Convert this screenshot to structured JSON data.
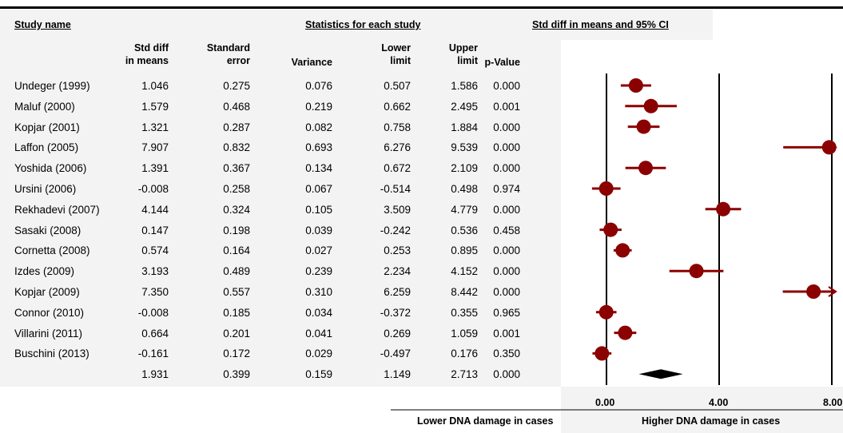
{
  "titles": {
    "study_name": "Study name",
    "statistics": "Statistics for each study",
    "forest": "Std diff in means and 95% CI"
  },
  "columns": [
    {
      "key": "smd",
      "label": "Std diff\nin means"
    },
    {
      "key": "se",
      "label": "Standard\nerror"
    },
    {
      "key": "var",
      "label": "Variance"
    },
    {
      "key": "lower",
      "label": "Lower\nlimit"
    },
    {
      "key": "upper",
      "label": "Upper\nlimit"
    },
    {
      "key": "p",
      "label": "p-Value"
    }
  ],
  "rows": [
    {
      "name": "Undeger (1999)",
      "smd": "1.046",
      "se": "0.275",
      "var": "0.076",
      "lower": "0.507",
      "upper": "1.586",
      "p": "0.000"
    },
    {
      "name": "Maluf (2000)",
      "smd": "1.579",
      "se": "0.468",
      "var": "0.219",
      "lower": "0.662",
      "upper": "2.495",
      "p": "0.001"
    },
    {
      "name": "Kopjar (2001)",
      "smd": "1.321",
      "se": "0.287",
      "var": "0.082",
      "lower": "0.758",
      "upper": "1.884",
      "p": "0.000"
    },
    {
      "name": "Laffon (2005)",
      "smd": "7.907",
      "se": "0.832",
      "var": "0.693",
      "lower": "6.276",
      "upper": "9.539",
      "p": "0.000"
    },
    {
      "name": "Yoshida (2006)",
      "smd": "1.391",
      "se": "0.367",
      "var": "0.134",
      "lower": "0.672",
      "upper": "2.109",
      "p": "0.000"
    },
    {
      "name": "Ursini (2006)",
      "smd": "-0.008",
      "se": "0.258",
      "var": "0.067",
      "lower": "-0.514",
      "upper": "0.498",
      "p": "0.974"
    },
    {
      "name": "Rekhadevi (2007)",
      "smd": "4.144",
      "se": "0.324",
      "var": "0.105",
      "lower": "3.509",
      "upper": "4.779",
      "p": "0.000"
    },
    {
      "name": "Sasaki (2008)",
      "smd": "0.147",
      "se": "0.198",
      "var": "0.039",
      "lower": "-0.242",
      "upper": "0.536",
      "p": "0.458"
    },
    {
      "name": "Cornetta (2008)",
      "smd": "0.574",
      "se": "0.164",
      "var": "0.027",
      "lower": "0.253",
      "upper": "0.895",
      "p": "0.000"
    },
    {
      "name": "Izdes (2009)",
      "smd": "3.193",
      "se": "0.489",
      "var": "0.239",
      "lower": "2.234",
      "upper": "4.152",
      "p": "0.000"
    },
    {
      "name": "Kopjar (2009)",
      "smd": "7.350",
      "se": "0.557",
      "var": "0.310",
      "lower": "6.259",
      "upper": "8.442",
      "p": "0.000"
    },
    {
      "name": "Connor (2010)",
      "smd": "-0.008",
      "se": "0.185",
      "var": "0.034",
      "lower": "-0.372",
      "upper": "0.355",
      "p": "0.965"
    },
    {
      "name": "Villarini (2011)",
      "smd": "0.664",
      "se": "0.201",
      "var": "0.041",
      "lower": "0.269",
      "upper": "1.059",
      "p": "0.001"
    },
    {
      "name": "Buschini (2013)",
      "smd": "-0.161",
      "se": "0.172",
      "var": "0.029",
      "lower": "-0.497",
      "upper": "0.176",
      "p": "0.350"
    }
  ],
  "summary": {
    "name": "",
    "smd": "1.931",
    "se": "0.399",
    "var": "0.159",
    "lower": "1.149",
    "upper": "2.713",
    "p": "0.000"
  },
  "axis": {
    "ticks": [
      "0.00",
      "4.00",
      "8.00"
    ],
    "left_label": "Lower DNA damage in cases",
    "right_label": "Higher DNA damage in cases"
  },
  "colors": {
    "marker": "#8b0000",
    "diamond": "#000000"
  },
  "chart_data": {
    "type": "scatter",
    "title": "Std diff in means and 95% CI",
    "xlim": [
      0,
      8
    ],
    "x_ticks": [
      0,
      4,
      8
    ],
    "xlabel_left": "Lower DNA damage in cases",
    "xlabel_right": "Higher DNA damage in cases",
    "points": [
      {
        "study": "Undeger (1999)",
        "x": 1.046,
        "lower": 0.507,
        "upper": 1.586
      },
      {
        "study": "Maluf (2000)",
        "x": 1.579,
        "lower": 0.662,
        "upper": 2.495
      },
      {
        "study": "Kopjar (2001)",
        "x": 1.321,
        "lower": 0.758,
        "upper": 1.884
      },
      {
        "study": "Laffon (2005)",
        "x": 7.907,
        "lower": 6.276,
        "upper": 9.539
      },
      {
        "study": "Yoshida (2006)",
        "x": 1.391,
        "lower": 0.672,
        "upper": 2.109
      },
      {
        "study": "Ursini (2006)",
        "x": -0.008,
        "lower": -0.514,
        "upper": 0.498
      },
      {
        "study": "Rekhadevi (2007)",
        "x": 4.144,
        "lower": 3.509,
        "upper": 4.779
      },
      {
        "study": "Sasaki (2008)",
        "x": 0.147,
        "lower": -0.242,
        "upper": 0.536
      },
      {
        "study": "Cornetta (2008)",
        "x": 0.574,
        "lower": 0.253,
        "upper": 0.895
      },
      {
        "study": "Izdes (2009)",
        "x": 3.193,
        "lower": 2.234,
        "upper": 4.152
      },
      {
        "study": "Kopjar (2009)",
        "x": 7.35,
        "lower": 6.259,
        "upper": 8.442
      },
      {
        "study": "Connor (2010)",
        "x": -0.008,
        "lower": -0.372,
        "upper": 0.355
      },
      {
        "study": "Villarini (2011)",
        "x": 0.664,
        "lower": 0.269,
        "upper": 1.059
      },
      {
        "study": "Buschini (2013)",
        "x": -0.161,
        "lower": -0.497,
        "upper": 0.176
      }
    ],
    "summary": {
      "x": 1.931,
      "lower": 1.149,
      "upper": 2.713
    }
  }
}
